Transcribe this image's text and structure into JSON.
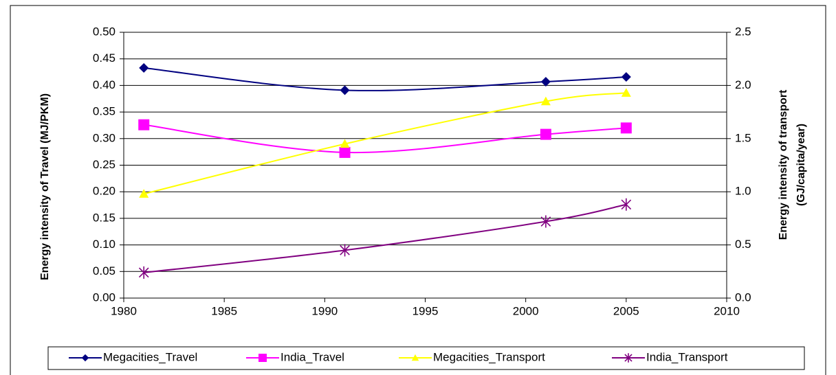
{
  "chart_data": {
    "type": "line",
    "y_label": "Energy intensity of Travel (MJ/PKM)",
    "y2_label": [
      "Energy intensity of transport",
      "(GJ/capita/year)"
    ],
    "x": [
      1981,
      1991,
      2001,
      2005
    ],
    "xlim": [
      1980,
      2010
    ],
    "xticks": [
      1980,
      1985,
      1990,
      1995,
      2000,
      2005,
      2010
    ],
    "ylim": [
      0,
      0.5
    ],
    "yticks": [
      {
        "value": 0,
        "label": "0.00"
      },
      0.05,
      {
        "value": 0.1,
        "label": "0.10"
      },
      0.15,
      {
        "value": 0.2,
        "label": "0.20"
      },
      0.25,
      {
        "value": 0.3,
        "label": "0.30"
      },
      0.35,
      {
        "value": 0.4,
        "label": "0.40"
      },
      0.45,
      {
        "value": 0.5,
        "label": "0.50"
      }
    ],
    "y2lim": [
      0,
      2.5
    ],
    "y2ticks": [
      {
        "value": 0,
        "label": "0.0"
      },
      0.5,
      {
        "value": 1,
        "label": "1.0"
      },
      1.5,
      {
        "value": 2,
        "label": "2.0"
      },
      2.5
    ],
    "grid": true,
    "smooth": true,
    "legend": "bottom",
    "series": [
      {
        "name": "Megacities_Travel",
        "color": "#000080",
        "marker": "diamond",
        "values": [
          0.433,
          0.391,
          0.407,
          0.416
        ]
      },
      {
        "name": "India_Travel",
        "color": "#ff00ff",
        "marker": "square",
        "values": [
          0.326,
          0.274,
          0.308,
          0.32
        ]
      },
      {
        "name": "Megacities_Transport",
        "color": "#ffff00",
        "marker": "triangle",
        "axis": "y2",
        "values": [
          0.98,
          1.45,
          1.85,
          1.93
        ]
      },
      {
        "name": "India_Transport",
        "color": "#800080",
        "marker": "star",
        "axis": "y2",
        "values": [
          0.24,
          0.45,
          0.72,
          0.88
        ]
      }
    ]
  }
}
